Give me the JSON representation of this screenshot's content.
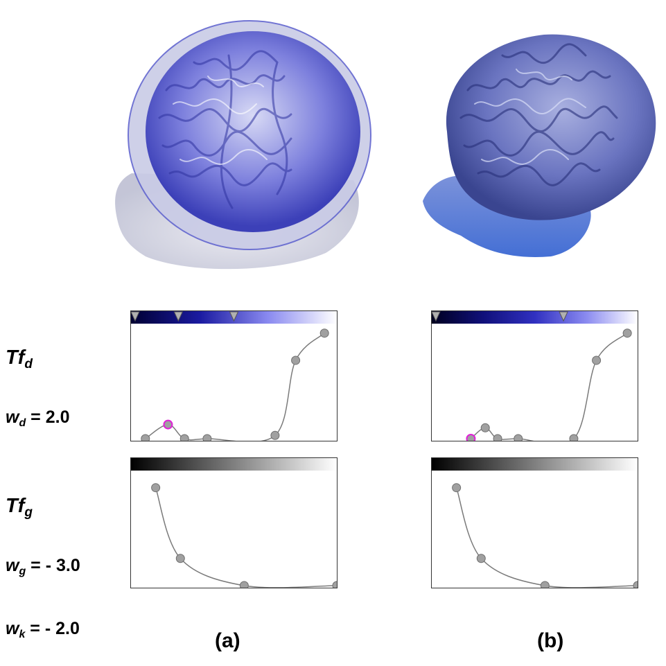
{
  "labels": {
    "tfd_main": "Tf",
    "tfd_sub": "d",
    "wd_main": "w",
    "wd_sub": "d",
    "wd_value": " = 2.0",
    "tfg_main": "Tf",
    "tfg_sub": "g",
    "wg_main": "w",
    "wg_sub": "g",
    "wg_value": " = - 3.0",
    "wk_main": "w",
    "wk_sub": "k",
    "wk_value": " = - 2.0",
    "panel_a": "(a)",
    "panel_b": "(b)"
  },
  "colors": {
    "brain_a": "#5a5fd0",
    "brain_b": "#5f6fb8",
    "node_fill": "#a0a0a0",
    "node_stroke": "#6e6e6e",
    "selected_node_stroke": "#e020d8",
    "curve": "#7a7a7a"
  },
  "transfer_functions": {
    "a_density": {
      "colorbar": [
        "#000033",
        "#1a1aa0",
        "#8a8af0",
        "#ffffff"
      ],
      "markers": [
        0.02,
        0.23,
        0.5
      ],
      "nodes": [
        [
          0.07,
          0.0
        ],
        [
          0.18,
          0.13
        ],
        [
          0.26,
          0.0
        ],
        [
          0.37,
          0.0
        ],
        [
          0.7,
          0.03
        ],
        [
          0.8,
          0.72
        ],
        [
          0.94,
          0.97
        ]
      ],
      "selected": 1
    },
    "b_density": {
      "colorbar": [
        "#000020",
        "#10107a",
        "#3030c0",
        "#8a8af0",
        "#ffffff"
      ],
      "markers": [
        0.02,
        0.64
      ],
      "nodes": [
        [
          0.19,
          0.0
        ],
        [
          0.26,
          0.1
        ],
        [
          0.32,
          0.0
        ],
        [
          0.42,
          0.0
        ],
        [
          0.69,
          0.0
        ],
        [
          0.8,
          0.72
        ],
        [
          0.95,
          0.97
        ]
      ],
      "selected": 0
    },
    "a_gradient": {
      "colorbar": [
        "#000000",
        "#ffffff"
      ],
      "nodes": [
        [
          0.12,
          0.9
        ],
        [
          0.24,
          0.25
        ],
        [
          0.55,
          0.0
        ],
        [
          1.0,
          0.0
        ]
      ]
    },
    "b_gradient": {
      "colorbar": [
        "#000000",
        "#ffffff"
      ],
      "nodes": [
        [
          0.12,
          0.9
        ],
        [
          0.24,
          0.25
        ],
        [
          0.55,
          0.0
        ],
        [
          1.0,
          0.0
        ]
      ]
    }
  }
}
